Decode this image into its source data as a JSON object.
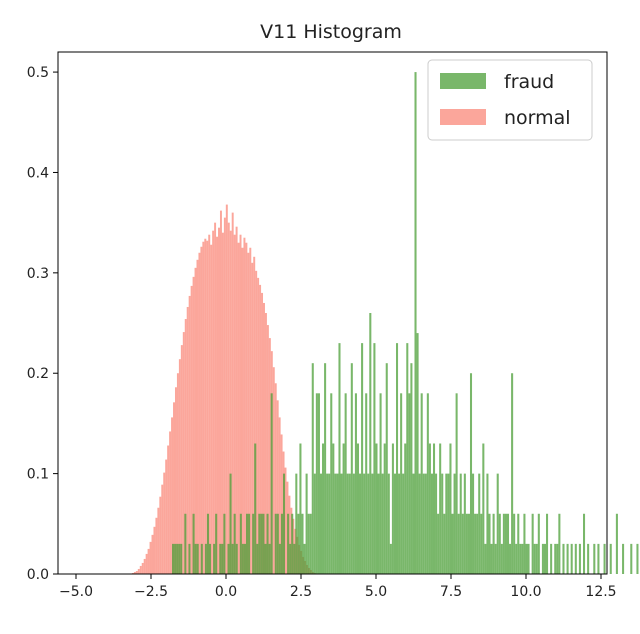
{
  "chart_data": {
    "type": "histogram",
    "title": "V11 Histogram",
    "xlabel": "",
    "ylabel": "",
    "xlim": [
      -5.6,
      12.7
    ],
    "ylim": [
      0,
      0.52
    ],
    "x_ticks": [
      -5.0,
      -2.5,
      0.0,
      2.5,
      5.0,
      7.5,
      10.0,
      12.5
    ],
    "y_ticks": [
      0.0,
      0.1,
      0.2,
      0.3,
      0.4,
      0.5
    ],
    "x_tick_labels": [
      "−5.0",
      "−2.5",
      "0.0",
      "2.5",
      "5.0",
      "7.5",
      "10.0",
      "12.5"
    ],
    "y_tick_labels": [
      "0.0",
      "0.1",
      "0.2",
      "0.3",
      "0.4",
      "0.5"
    ],
    "grid": false,
    "legend_position": "top-right",
    "series": [
      {
        "name": "fraud",
        "color": "#4c9f38",
        "opacity": 0.75,
        "bin_start": -1.8,
        "bin_width": 0.0685,
        "densities": [
          0.03,
          0.03,
          0.03,
          0.03,
          0.03,
          0.0,
          0.06,
          0.0,
          0.03,
          0.0,
          0.06,
          0.03,
          0.03,
          0.0,
          0.03,
          0.0,
          0.03,
          0.06,
          0.03,
          0.0,
          0.03,
          0.06,
          0.0,
          0.03,
          0.03,
          0.06,
          0.0,
          0.03,
          0.1,
          0.03,
          0.06,
          0.03,
          0.0,
          0.06,
          0.03,
          0.03,
          0.06,
          0.06,
          0.0,
          0.06,
          0.13,
          0.03,
          0.06,
          0.06,
          0.06,
          0.03,
          0.06,
          0.03,
          0.18,
          0.0,
          0.06,
          0.06,
          0.03,
          0.06,
          0.1,
          0.0,
          0.06,
          0.03,
          0.06,
          0.03,
          0.1,
          0.06,
          0.13,
          0.06,
          0.03,
          0.1,
          0.06,
          0.06,
          0.21,
          0.1,
          0.18,
          0.18,
          0.1,
          0.13,
          0.21,
          0.1,
          0.1,
          0.18,
          0.13,
          0.1,
          0.1,
          0.23,
          0.1,
          0.13,
          0.18,
          0.1,
          0.1,
          0.21,
          0.1,
          0.18,
          0.13,
          0.1,
          0.23,
          0.1,
          0.18,
          0.1,
          0.26,
          0.1,
          0.23,
          0.13,
          0.1,
          0.18,
          0.1,
          0.13,
          0.21,
          0.1,
          0.03,
          0.13,
          0.1,
          0.23,
          0.1,
          0.18,
          0.1,
          0.13,
          0.23,
          0.18,
          0.21,
          0.1,
          0.5,
          0.24,
          0.1,
          0.18,
          0.1,
          0.1,
          0.18,
          0.13,
          0.1,
          0.13,
          0.1,
          0.06,
          0.13,
          0.1,
          0.06,
          0.1,
          0.1,
          0.13,
          0.06,
          0.1,
          0.18,
          0.06,
          0.1,
          0.06,
          0.1,
          0.06,
          0.06,
          0.2,
          0.1,
          0.06,
          0.06,
          0.1,
          0.06,
          0.13,
          0.03,
          0.1,
          0.06,
          0.03,
          0.06,
          0.03,
          0.1,
          0.06,
          0.03,
          0.06,
          0.06,
          0.06,
          0.03,
          0.2,
          0.06,
          0.03,
          0.06,
          0.03,
          0.03,
          0.06,
          0.03,
          0.03,
          0.0,
          0.06,
          0.03,
          0.03,
          0.06,
          0.0,
          0.03,
          0.03,
          0.06,
          0.0,
          0.03,
          0.0,
          0.03,
          0.03,
          0.06,
          0.0,
          0.03,
          0.0,
          0.03,
          0.0,
          0.03,
          0.0,
          0.03,
          0.0,
          0.03,
          0.0,
          0.06,
          0.0,
          0.03,
          0.0,
          0.0,
          0.03,
          0.0,
          0.03,
          0.0,
          0.0,
          0.03,
          0.0,
          0.0,
          0.03,
          0.0,
          0.0,
          0.06,
          0.0,
          0.0,
          0.03,
          0.0,
          0.0,
          0.0,
          0.03,
          0.0,
          0.0,
          0.03,
          0.0,
          0.0,
          0.0,
          0.03,
          0.0,
          0.0,
          0.0,
          0.0,
          0.03
        ]
      },
      {
        "name": "normal",
        "color": "#fa8070",
        "opacity": 0.7,
        "bin_start": -3.2,
        "bin_width": 0.0652,
        "densities": [
          0.0,
          0.001,
          0.002,
          0.003,
          0.005,
          0.008,
          0.011,
          0.015,
          0.02,
          0.025,
          0.032,
          0.039,
          0.047,
          0.056,
          0.066,
          0.077,
          0.089,
          0.101,
          0.114,
          0.128,
          0.142,
          0.156,
          0.171,
          0.186,
          0.2,
          0.214,
          0.228,
          0.241,
          0.254,
          0.266,
          0.277,
          0.287,
          0.296,
          0.305,
          0.313,
          0.32,
          0.326,
          0.331,
          0.334,
          0.332,
          0.338,
          0.328,
          0.342,
          0.35,
          0.336,
          0.345,
          0.362,
          0.34,
          0.355,
          0.368,
          0.35,
          0.342,
          0.36,
          0.338,
          0.346,
          0.33,
          0.338,
          0.325,
          0.335,
          0.33,
          0.32,
          0.325,
          0.31,
          0.316,
          0.302,
          0.295,
          0.288,
          0.28,
          0.27,
          0.26,
          0.248,
          0.235,
          0.222,
          0.206,
          0.19,
          0.173,
          0.156,
          0.139,
          0.122,
          0.106,
          0.092,
          0.078,
          0.066,
          0.055,
          0.045,
          0.037,
          0.029,
          0.023,
          0.017,
          0.013,
          0.009,
          0.006,
          0.004,
          0.002,
          0.001
        ]
      }
    ]
  }
}
